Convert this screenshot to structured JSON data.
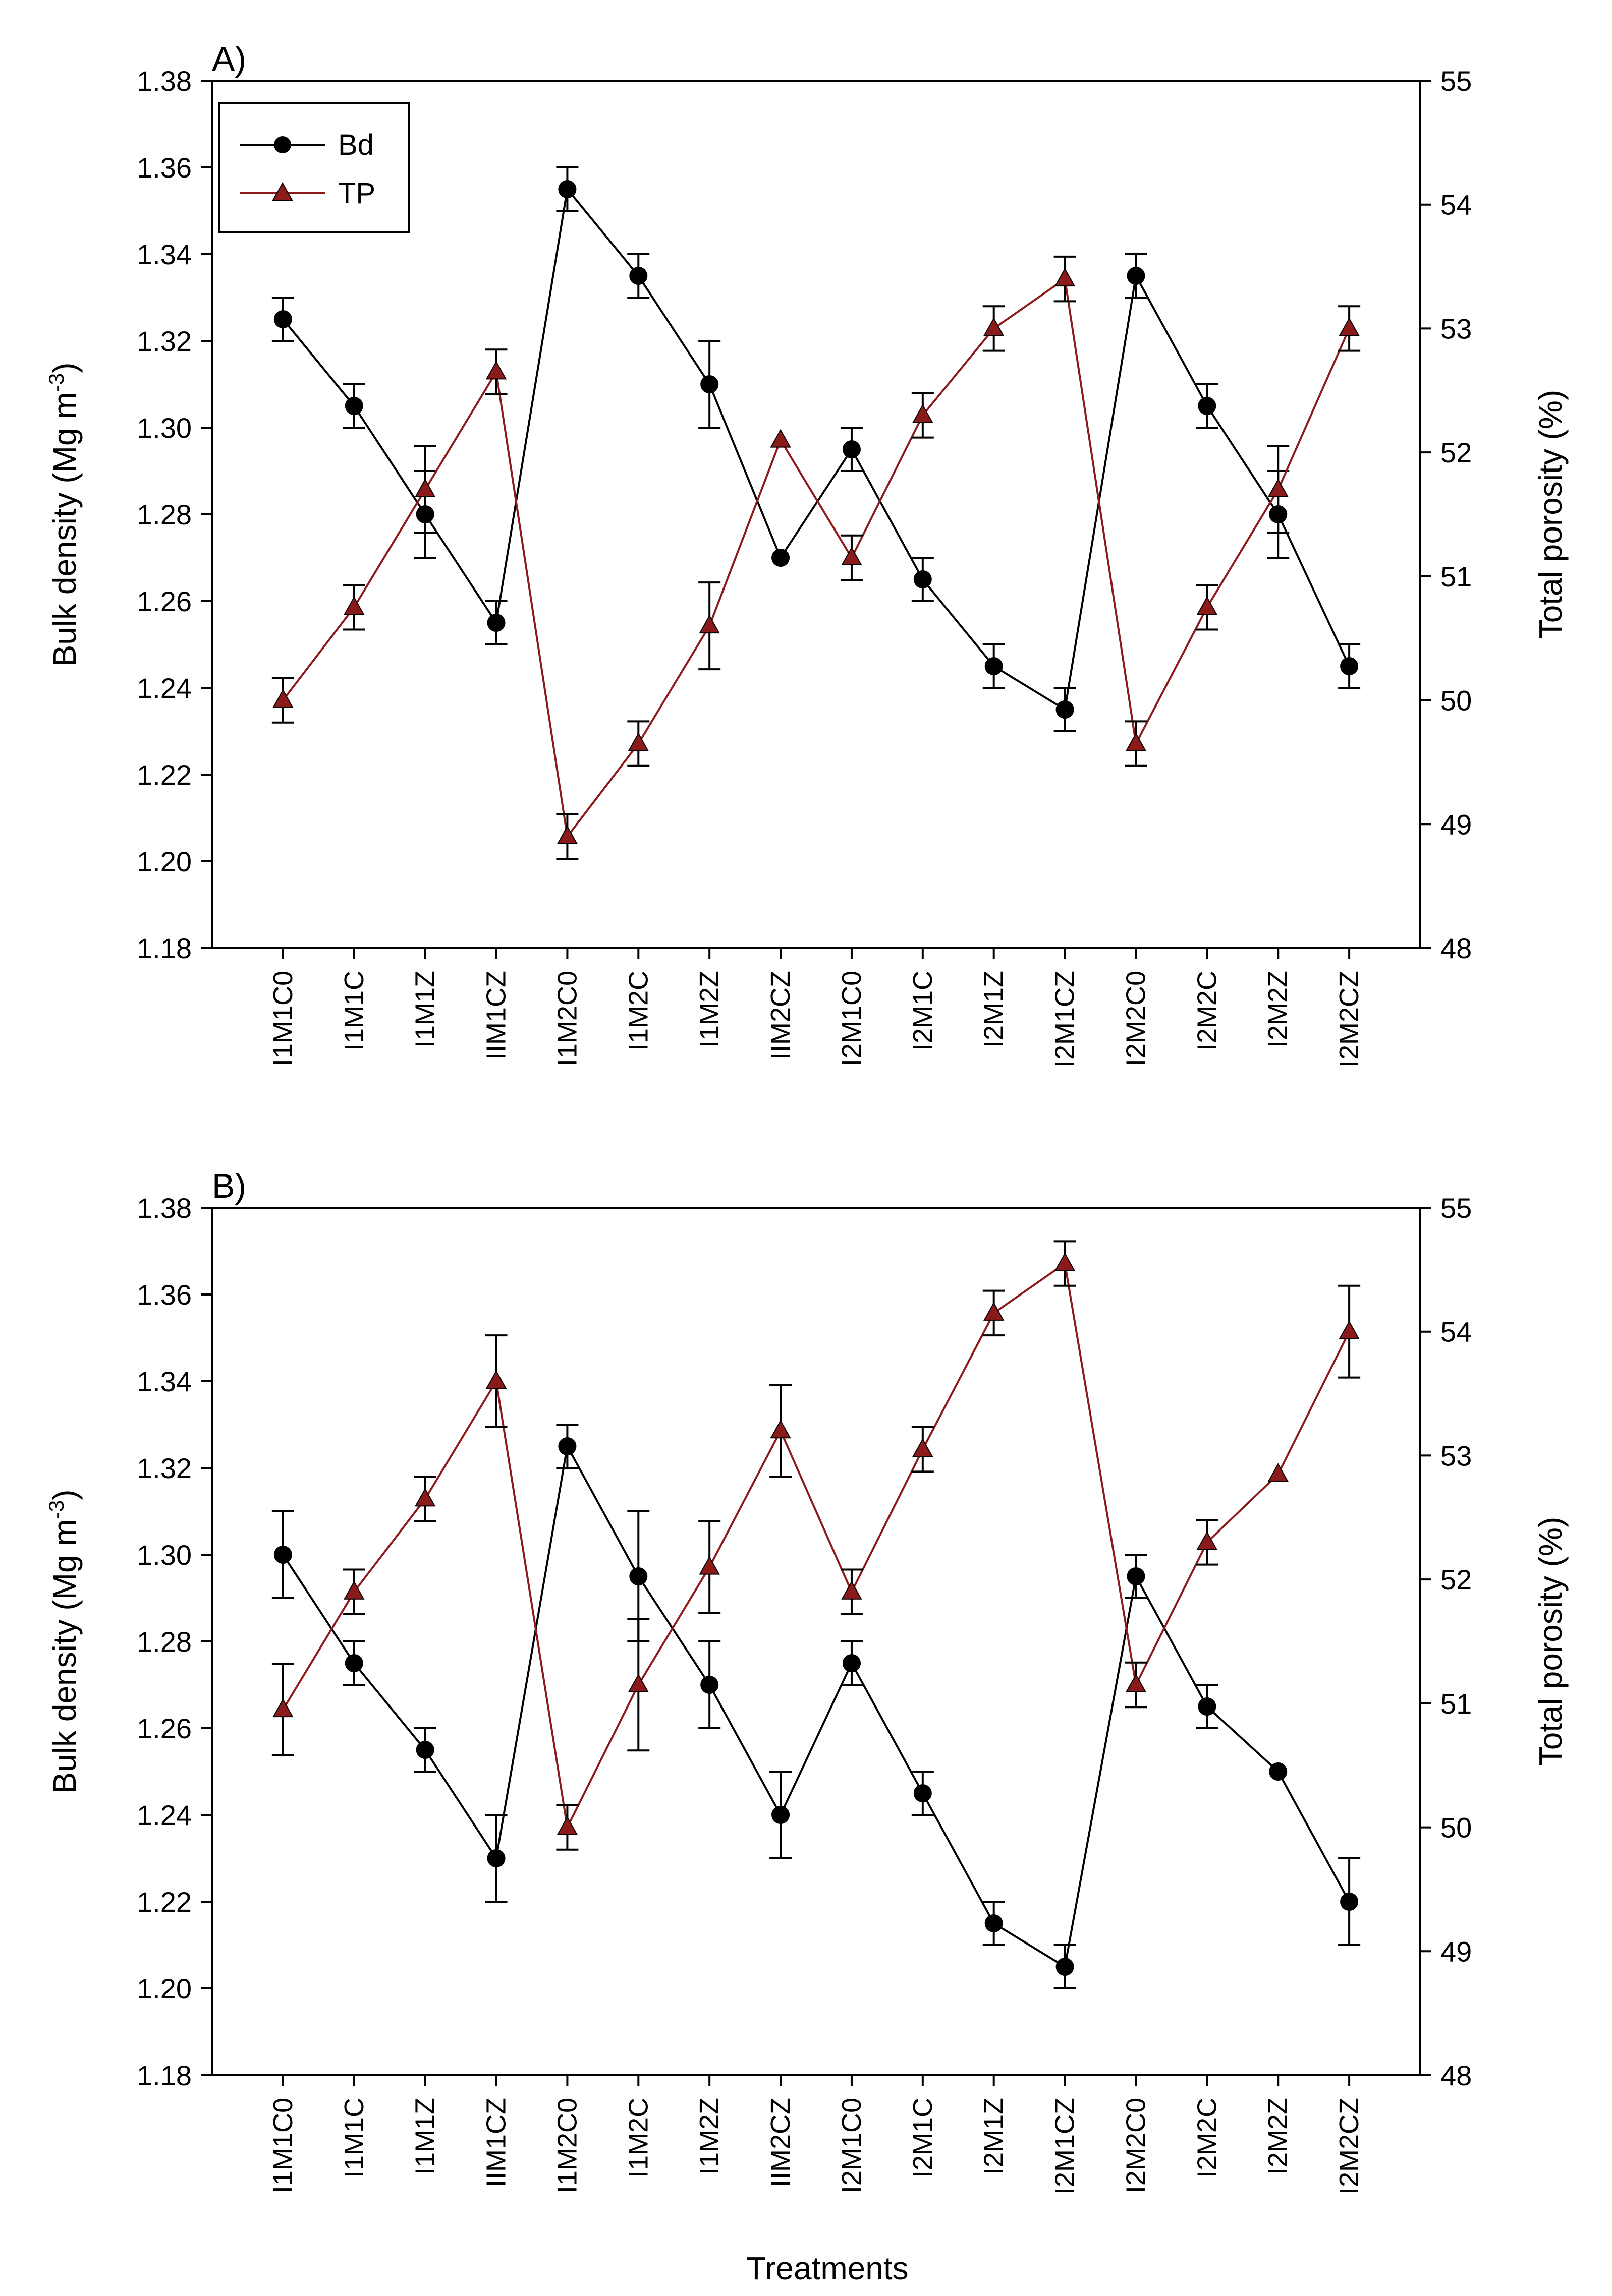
{
  "figure": {
    "xlabel": "Treatments"
  },
  "colors": {
    "bd": "#000000",
    "tp": "#8b1a1a",
    "axis": "#000000",
    "background": "#ffffff"
  },
  "legend": {
    "placement": "top-left",
    "bd_label": "Bd",
    "tp_label": "TP"
  },
  "chart_data": [
    {
      "type": "line",
      "panel": "A)",
      "categories": [
        "I1M1C0",
        "I1M1C",
        "I1M1Z",
        "IIM1CZ",
        "I1M2C0",
        "I1M2C",
        "I1M2Z",
        "IIM2CZ",
        "I2M1C0",
        "I2M1C",
        "I2M1Z",
        "I2M1CZ",
        "I2M2C0",
        "I2M2C",
        "I2M2Z",
        "I2M2CZ"
      ],
      "ylabel": "Bulk density (Mg m-3)",
      "y2label": "Total porosity (%)",
      "ylim": [
        1.18,
        1.38
      ],
      "y2lim": [
        48,
        55
      ],
      "yticks": [
        "1.18",
        "1.20",
        "1.22",
        "1.24",
        "1.26",
        "1.28",
        "1.30",
        "1.32",
        "1.34",
        "1.36",
        "1.38"
      ],
      "y2ticks": [
        "48",
        "49",
        "50",
        "51",
        "52",
        "53",
        "54",
        "55"
      ],
      "series": [
        {
          "name": "Bd",
          "axis": "left",
          "marker": "circle",
          "values": [
            1.325,
            1.305,
            1.28,
            1.255,
            1.355,
            1.335,
            1.31,
            1.27,
            1.295,
            1.265,
            1.245,
            1.235,
            1.335,
            1.305,
            1.28,
            1.245
          ],
          "errors": [
            0.005,
            0.005,
            0.01,
            0.005,
            0.005,
            0.005,
            0.01,
            0.0,
            0.005,
            0.005,
            0.005,
            0.005,
            0.005,
            0.005,
            0.01,
            0.005
          ]
        },
        {
          "name": "TP",
          "axis": "right",
          "marker": "triangle",
          "values": [
            50.0,
            50.75,
            51.7,
            52.65,
            48.9,
            49.65,
            50.6,
            52.1,
            51.15,
            52.3,
            53.0,
            53.4,
            49.65,
            50.75,
            51.7,
            53.0
          ],
          "errors": [
            0.18,
            0.18,
            0.35,
            0.18,
            0.18,
            0.18,
            0.35,
            0.0,
            0.18,
            0.18,
            0.18,
            0.18,
            0.18,
            0.18,
            0.35,
            0.18
          ]
        }
      ]
    },
    {
      "type": "line",
      "panel": "B)",
      "categories": [
        "I1M1C0",
        "I1M1C",
        "I1M1Z",
        "IIM1CZ",
        "I1M2C0",
        "I1M2C",
        "I1M2Z",
        "IIM2CZ",
        "I2M1C0",
        "I2M1C",
        "I2M1Z",
        "I2M1CZ",
        "I2M2C0",
        "I2M2C",
        "I2M2Z",
        "I2M2CZ"
      ],
      "ylabel": "Bulk density (Mg m-3)",
      "y2label": "Total porosity (%)",
      "xlabel": "Treatments",
      "ylim": [
        1.18,
        1.38
      ],
      "y2lim": [
        48,
        55
      ],
      "yticks": [
        "1.18",
        "1.20",
        "1.22",
        "1.24",
        "1.26",
        "1.28",
        "1.30",
        "1.32",
        "1.34",
        "1.36",
        "1.38"
      ],
      "y2ticks": [
        "48",
        "49",
        "50",
        "51",
        "52",
        "53",
        "54",
        "55"
      ],
      "series": [
        {
          "name": "Bd",
          "axis": "left",
          "marker": "circle",
          "values": [
            1.3,
            1.275,
            1.255,
            1.23,
            1.325,
            1.295,
            1.27,
            1.24,
            1.275,
            1.245,
            1.215,
            1.205,
            1.295,
            1.265,
            1.25,
            1.22
          ],
          "errors": [
            0.01,
            0.005,
            0.005,
            0.01,
            0.005,
            0.015,
            0.01,
            0.01,
            0.005,
            0.005,
            0.005,
            0.005,
            0.005,
            0.005,
            0.0,
            0.01
          ]
        },
        {
          "name": "TP",
          "axis": "right",
          "marker": "triangle",
          "values": [
            50.95,
            51.9,
            52.65,
            53.6,
            50.0,
            51.15,
            52.1,
            53.2,
            51.9,
            53.05,
            54.15,
            54.55,
            51.15,
            52.3,
            52.85,
            54.0
          ],
          "errors": [
            0.37,
            0.18,
            0.18,
            0.37,
            0.18,
            0.53,
            0.37,
            0.37,
            0.18,
            0.18,
            0.18,
            0.18,
            0.18,
            0.18,
            0.0,
            0.37
          ]
        }
      ]
    }
  ]
}
